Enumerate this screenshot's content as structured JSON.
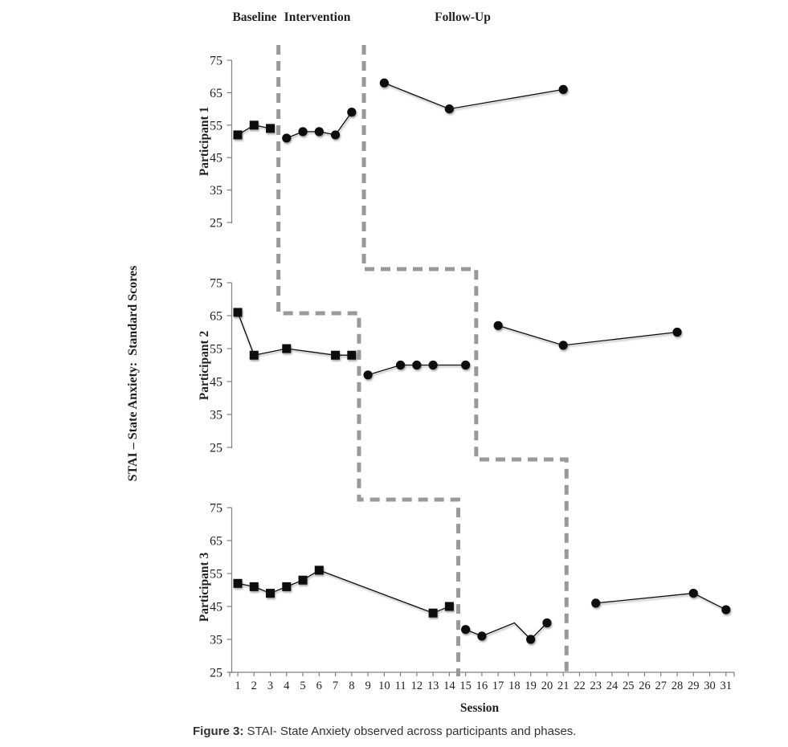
{
  "figure": {
    "caption_prefix": "Figure 3:",
    "caption_rest": " STAI- State Anxiety observed across participants and phases."
  },
  "chart_data": {
    "type": "line",
    "title": "",
    "xlabel": "Session",
    "ylabel": "STAI – State Anxiety:  Standard Scores",
    "phase_labels": [
      "Baseline",
      "Intervention",
      "Follow-Up"
    ],
    "x_ticks": [
      1,
      2,
      3,
      4,
      5,
      6,
      7,
      8,
      9,
      10,
      11,
      12,
      13,
      14,
      15,
      16,
      17,
      18,
      19,
      20,
      21,
      22,
      23,
      24,
      25,
      26,
      27,
      28,
      29,
      30,
      31
    ],
    "ylim": [
      25,
      75
    ],
    "yticks": [
      75,
      65,
      55,
      45,
      35,
      25
    ],
    "grid": false,
    "legend": "none",
    "colors": {
      "data": "#111111",
      "phase_line": "#999999",
      "axis": "#808080",
      "text": "#1f1f1f"
    },
    "panels": [
      {
        "label": "Participant 1",
        "series": [
          {
            "name": "Baseline",
            "marker": "square",
            "points": [
              [
                1,
                52
              ],
              [
                2,
                55
              ],
              [
                3,
                54
              ]
            ]
          },
          {
            "name": "Intervention",
            "marker": "circle",
            "points": [
              [
                4,
                51
              ],
              [
                5,
                53
              ],
              [
                6,
                53
              ],
              [
                7,
                52
              ],
              [
                8,
                59
              ]
            ]
          },
          {
            "name": "Follow-Up",
            "marker": "circle",
            "points": [
              [
                10,
                68
              ],
              [
                14,
                60
              ],
              [
                21,
                66
              ]
            ]
          }
        ]
      },
      {
        "label": "Participant 2",
        "series": [
          {
            "name": "Baseline",
            "marker": "square",
            "points": [
              [
                1,
                66
              ],
              [
                2,
                53
              ],
              [
                4,
                55
              ],
              [
                7,
                53
              ],
              [
                8,
                53
              ]
            ]
          },
          {
            "name": "Intervention",
            "marker": "circle",
            "points": [
              [
                9,
                47
              ],
              [
                11,
                50
              ],
              [
                12,
                50
              ],
              [
                13,
                50
              ],
              [
                15,
                50
              ]
            ]
          },
          {
            "name": "Follow-Up",
            "marker": "circle",
            "points": [
              [
                17,
                62
              ],
              [
                21,
                56
              ],
              [
                28,
                60
              ]
            ]
          }
        ]
      },
      {
        "label": "Participant 3",
        "series": [
          {
            "name": "Baseline",
            "marker": "square",
            "points": [
              [
                1,
                52
              ],
              [
                2,
                51
              ],
              [
                3,
                49
              ],
              [
                4,
                51
              ],
              [
                5,
                53
              ],
              [
                6,
                56
              ],
              [
                13,
                43
              ],
              [
                14,
                45
              ]
            ]
          },
          {
            "name": "Intervention",
            "marker": "circle",
            "points": [
              [
                15,
                38
              ],
              [
                16,
                36
              ],
              [
                19,
                35
              ],
              [
                20,
                40
              ]
            ],
            "line_points": [
              [
                15,
                38
              ],
              [
                16,
                36
              ],
              [
                18,
                40
              ],
              [
                19,
                35
              ],
              [
                20,
                40
              ]
            ]
          },
          {
            "name": "Follow-Up",
            "marker": "circle",
            "points": [
              [
                23,
                46
              ],
              [
                29,
                49
              ],
              [
                31,
                44
              ]
            ]
          }
        ]
      }
    ],
    "phase_boundaries": {
      "baseline_intervention": {
        "sessions_by_panel": [
          3.5,
          8.45,
          14.55
        ]
      },
      "intervention_followup": {
        "sessions_by_panel": [
          8.75,
          15.65,
          21.2
        ]
      }
    }
  }
}
